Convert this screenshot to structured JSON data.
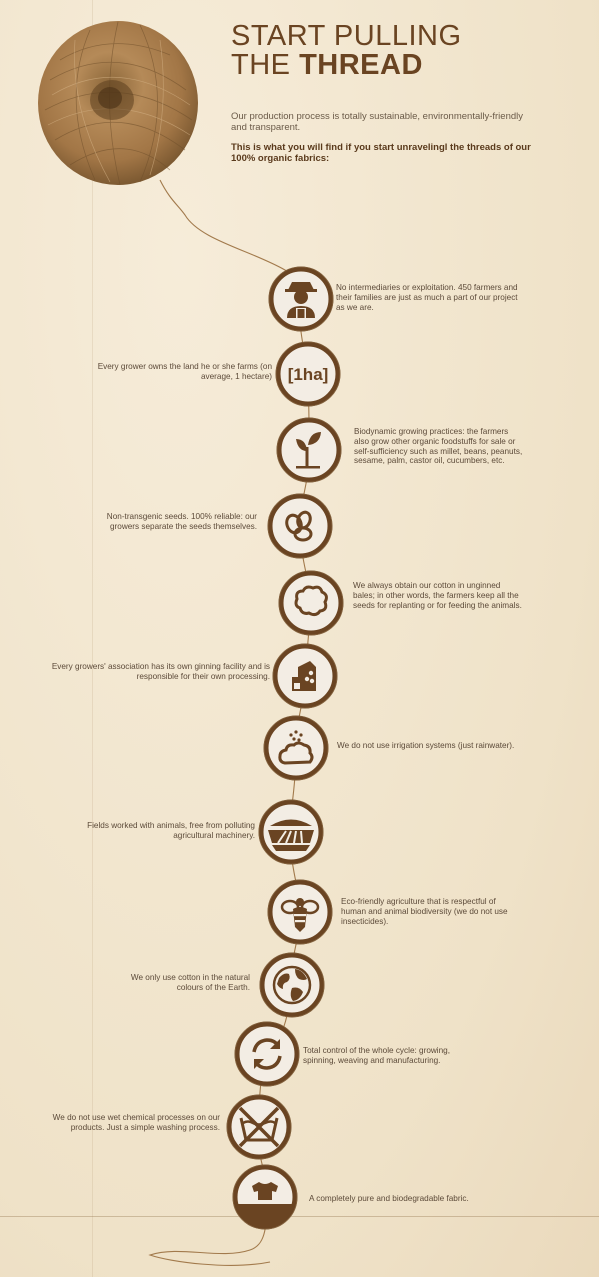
{
  "header": {
    "title_line1": "START PULLING",
    "title_line2_prefix": "THE ",
    "title_line2_bold": "THREAD",
    "intro": "Our production process is totally sustainable, environmentally-friendly and transparent.",
    "lead": "This is what you will find if you start unravelingl the threads of our 100% organic fabrics:"
  },
  "items": [
    {
      "icon": "farmer-icon",
      "text": "No intermediaries or exploitation. 450 farmers and their families are just as much a part of our project as we are."
    },
    {
      "icon": "hectare-icon",
      "icon_text": "[1ha]",
      "text": "Every grower owns the land he or she farms (on average, 1 hectare)"
    },
    {
      "icon": "plant-icon",
      "text": "Biodynamic growing practices: the farmers also grow other organic foodstuffs for sale or self-sufficiency such as millet, beans, peanuts, sesame, palm, castor oil, cucumbers, etc."
    },
    {
      "icon": "seeds-icon",
      "text": "Non-transgenic seeds. 100% reliable: our growers separate the seeds themselves."
    },
    {
      "icon": "cotton-icon",
      "text": "We always obtain our cotton in unginned bales; in other words, the farmers keep all the seeds for replanting or for feeding the animals."
    },
    {
      "icon": "ginning-icon",
      "text": "Every growers' association has its own ginning facility and is responsible for their own processing."
    },
    {
      "icon": "rain-cloud-icon",
      "text": "We do not use irrigation systems (just rainwater)."
    },
    {
      "icon": "field-icon",
      "text": "Fields worked with animals, free from polluting agricultural machinery."
    },
    {
      "icon": "bee-icon",
      "text": "Eco-friendly agriculture that is respectful of human and animal biodiversity (we do not use insecticides)."
    },
    {
      "icon": "earth-icon",
      "text": "We only use cotton in the natural colours of the Earth."
    },
    {
      "icon": "cycle-icon",
      "text": "Total control of the whole cycle: growing, spinning, weaving and manufacturing."
    },
    {
      "icon": "no-wet-wash-icon",
      "text": "We do not use wet chemical processes on our products. Just a simple washing process."
    },
    {
      "icon": "shirt-soil-icon",
      "text": "A completely pure and biodegradable fabric."
    }
  ],
  "colors": {
    "brown": "#6a4422",
    "disc": "#f3ede4",
    "paper": "#f3e8d2",
    "thread": "#b58a58"
  }
}
